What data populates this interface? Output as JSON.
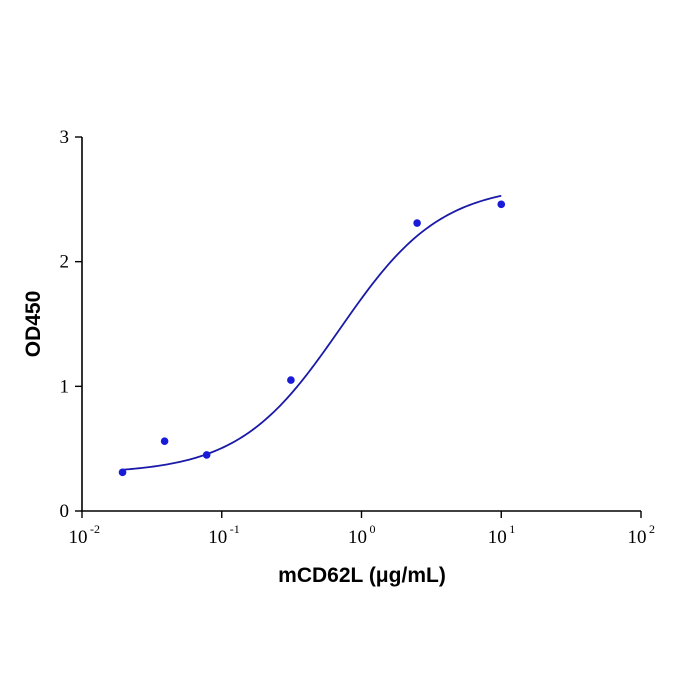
{
  "chart_data": {
    "type": "scatter",
    "title": "",
    "xlabel": "mCD62L (μg/mL)",
    "ylabel": "OD450",
    "x_scale": "log10",
    "xlim": [
      0.01,
      100
    ],
    "ylim": [
      0,
      3
    ],
    "x_ticks": [
      {
        "base": "10",
        "exp": "-2",
        "value": 0.01
      },
      {
        "base": "10",
        "exp": "-1",
        "value": 0.1
      },
      {
        "base": "10",
        "exp": "0",
        "value": 1
      },
      {
        "base": "10",
        "exp": "1",
        "value": 10
      },
      {
        "base": "10",
        "exp": "2",
        "value": 100
      }
    ],
    "y_ticks": [
      {
        "label": "0",
        "value": 0
      },
      {
        "label": "1",
        "value": 1
      },
      {
        "label": "2",
        "value": 2
      },
      {
        "label": "3",
        "value": 3
      }
    ],
    "grid": false,
    "legend": "none",
    "series": [
      {
        "x": [
          0.0195,
          0.039,
          0.078,
          0.3125,
          2.5,
          10
        ],
        "y": [
          0.31,
          0.56,
          0.45,
          1.05,
          2.31,
          2.46
        ],
        "marker_color": "#1a1ad9"
      }
    ],
    "fit": {
      "kind": "4PL",
      "bottom": 0.3,
      "top": 2.62,
      "ec50": 0.7,
      "hill": 1.2,
      "x_range": [
        0.0195,
        10
      ],
      "line_color": "#1a1aa8"
    }
  }
}
